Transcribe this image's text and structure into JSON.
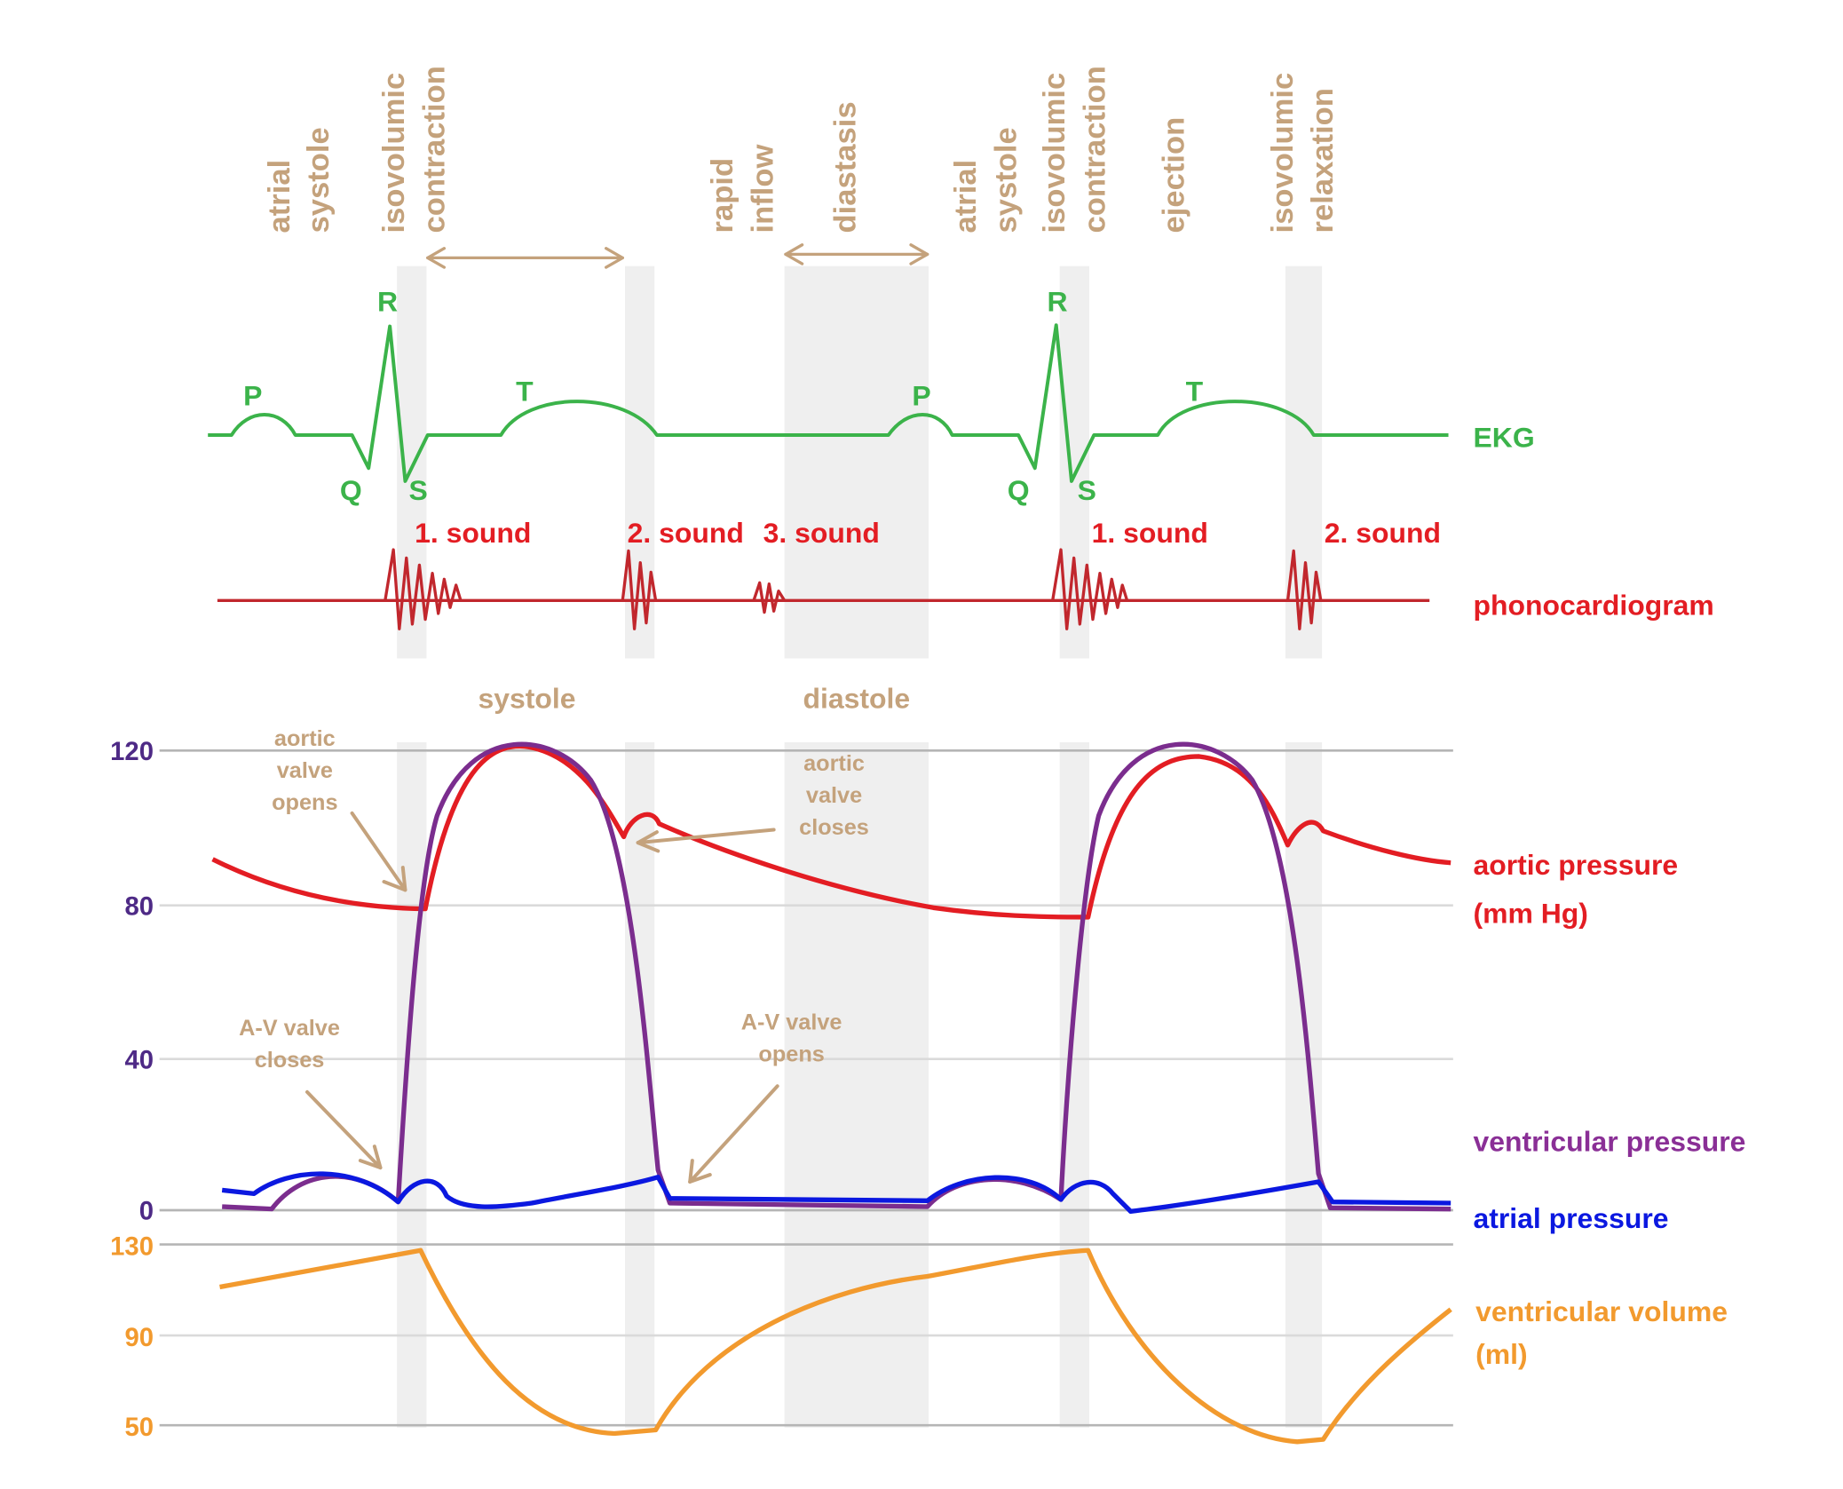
{
  "colors": {
    "tan": "#c4a27c",
    "green": "#3bb34a",
    "red": "#e31d23",
    "dark_red": "#c1272d",
    "purple": "#7b2d8e",
    "purple_label": "#8a2f96",
    "blue": "#0b18e0",
    "orange": "#f29a2e",
    "axis_purple": "#4e2a86",
    "grid": "#b5b5b5",
    "band": "#efefef"
  },
  "phases": {
    "atrial_systole_1": [
      "atrial",
      "systole"
    ],
    "isovolumic_contraction_1": [
      "isovolumic",
      "contraction"
    ],
    "rapid_inflow": [
      "rapid",
      "inflow"
    ],
    "diastasis": "diastasis",
    "atrial_systole_2": [
      "atrial",
      "systole"
    ],
    "isovolumic_contraction_2": [
      "isovolumic",
      "contraction"
    ],
    "ejection": "ejection",
    "isovolumic_relaxation": [
      "isovolumic",
      "relaxation"
    ]
  },
  "ekg": {
    "label": "EKG",
    "waves": [
      "P",
      "Q",
      "R",
      "S",
      "T",
      "P",
      "Q",
      "R",
      "S",
      "T"
    ]
  },
  "phonocardiogram": {
    "label": "phonocardiogram",
    "sounds": [
      "1. sound",
      "2. sound",
      "3. sound",
      "1. sound",
      "2. sound"
    ]
  },
  "periods": {
    "systole": "systole",
    "diastole": "diastole"
  },
  "annotations": {
    "aortic_valve_opens": [
      "aortic",
      "valve",
      "opens"
    ],
    "aortic_valve_closes": [
      "aortic",
      "valve",
      "closes"
    ],
    "av_valve_closes": [
      "A-V valve",
      "closes"
    ],
    "av_valve_opens": [
      "A-V valve",
      "opens"
    ]
  },
  "chart_data": {
    "type": "line",
    "pressure_axis": {
      "ticks": [
        "120",
        "80",
        "40",
        "0"
      ],
      "ylim": [
        0,
        120
      ]
    },
    "volume_axis": {
      "ticks": [
        "130",
        "90",
        "50"
      ],
      "ylim": [
        50,
        130
      ]
    },
    "series": [
      {
        "name": "aortic pressure",
        "unit": "(mm Hg)"
      },
      {
        "name": "ventricular pressure"
      },
      {
        "name": "atrial pressure"
      },
      {
        "name": "ventricular volume",
        "unit": "(ml)"
      }
    ]
  }
}
